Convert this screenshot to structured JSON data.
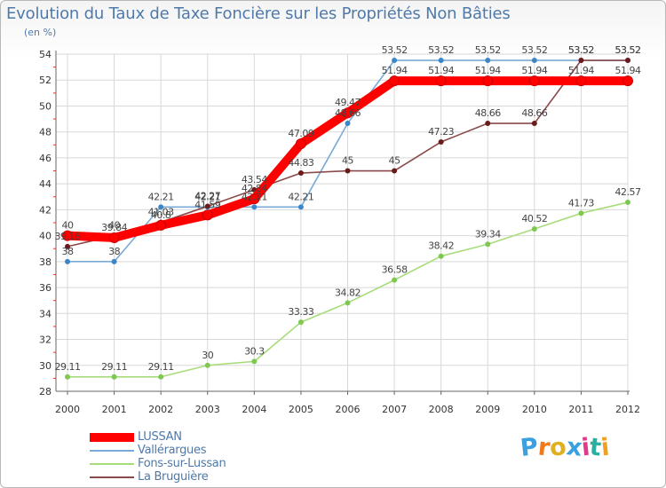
{
  "chart_data": {
    "type": "line",
    "title": "Evolution du Taux de Taxe Foncière sur les Propriétés Non Bâties",
    "subtitle": "(en %)",
    "x": [
      "2000",
      "2001",
      "2002",
      "2003",
      "2004",
      "2005",
      "2006",
      "2007",
      "2008",
      "2009",
      "2010",
      "2011",
      "2012"
    ],
    "ylim": [
      28,
      54
    ],
    "yticks": [
      28,
      30,
      32,
      34,
      36,
      38,
      40,
      42,
      44,
      46,
      48,
      50,
      52,
      54
    ],
    "ytick_labels": [
      "28",
      "30",
      "32",
      "34",
      "36",
      "38",
      "40",
      "42",
      "44",
      "46",
      "48",
      "50",
      "52",
      "54"
    ],
    "grid": true,
    "series": [
      {
        "name": "LUSSAN",
        "color": "#ff0000",
        "marker": "#ff0000",
        "values": [
          40,
          39.84,
          40.8,
          41.59,
          42.84,
          47.09,
          49.47,
          51.94,
          51.94,
          51.94,
          51.94,
          51.94,
          51.94
        ],
        "labels": [
          "40",
          "39.84",
          "40.8",
          "41.59",
          "42.84",
          "47.09",
          "49.47",
          "51.94",
          "51.94",
          "51.94",
          "51.94",
          "51.94",
          "51.94"
        ]
      },
      {
        "name": "Vallérargues",
        "color": "#7aaad6",
        "marker": "#3a86c8",
        "values": [
          38,
          38,
          42.21,
          42.21,
          42.21,
          42.21,
          48.66,
          53.52,
          53.52,
          53.52,
          53.52,
          53.52,
          53.52
        ],
        "labels": [
          "38",
          "38",
          "42.21",
          "42.21",
          "42.21",
          "42.21",
          "48.66",
          "53.52",
          "53.52",
          "53.52",
          "53.52",
          "53.52",
          "53.52"
        ]
      },
      {
        "name": "Fons-sur-Lussan",
        "color": "#a8dc7a",
        "marker": "#7ec850",
        "values": [
          29.11,
          29.11,
          29.11,
          30,
          30.3,
          33.33,
          34.82,
          36.58,
          38.42,
          39.34,
          40.52,
          41.73,
          42.57
        ],
        "labels": [
          "29.11",
          "29.11",
          "29.11",
          "30",
          "30.3",
          "33.33",
          "34.82",
          "36.58",
          "38.42",
          "39.34",
          "40.52",
          "41.73",
          "42.57"
        ]
      },
      {
        "name": "La Bruguière",
        "color": "#8a4a4a",
        "marker": "#6a1a1a",
        "values": [
          39.16,
          40,
          41.03,
          42.27,
          43.54,
          44.83,
          45,
          45,
          47.23,
          48.66,
          48.66,
          53.52,
          53.52
        ],
        "labels": [
          "39.16",
          "40",
          "41.03",
          "42.27",
          "43.54",
          "44.83",
          "45",
          "45",
          "47.23",
          "48.66",
          "48.66",
          "53.52",
          "53.52"
        ]
      }
    ]
  },
  "logo": {
    "text": "Proxiti",
    "letter_colors": [
      "#3aa0e0",
      "#f07a1a",
      "#e0b020",
      "#3aa0e0",
      "#e03a8a",
      "#2ab0a0",
      "#f0a020"
    ]
  }
}
